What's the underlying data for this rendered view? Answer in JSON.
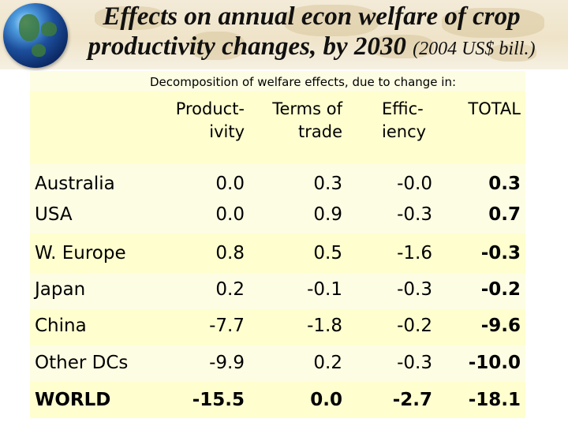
{
  "title": {
    "line1": "Effects on annual econ welfare of crop",
    "line2": "productivity changes, by 2030",
    "unit": "(2004 US$ bill.)"
  },
  "table": {
    "decomposition_label": "Decomposition of welfare effects, due to change in:",
    "columns": [
      {
        "line1": "Product-",
        "line2": "ivity"
      },
      {
        "line1": "Terms of",
        "line2": "trade"
      },
      {
        "line1": "Effic-",
        "line2": "iency"
      },
      {
        "line1": "TOTAL",
        "line2": ""
      }
    ],
    "rows": [
      {
        "region": "Australia",
        "productivity": "0.0",
        "terms_of_trade": "0.3",
        "efficiency": "-0.0",
        "total": "0.3"
      },
      {
        "region": "USA",
        "productivity": "0.0",
        "terms_of_trade": "0.9",
        "efficiency": "-0.3",
        "total": "0.7"
      },
      {
        "region": "W. Europe",
        "productivity": "0.8",
        "terms_of_trade": "0.5",
        "efficiency": "-1.6",
        "total": "-0.3"
      },
      {
        "region": "Japan",
        "productivity": "0.2",
        "terms_of_trade": "-0.1",
        "efficiency": "-0.3",
        "total": "-0.2"
      },
      {
        "region": "China",
        "productivity": "-7.7",
        "terms_of_trade": "-1.8",
        "efficiency": "-0.2",
        "total": "-9.6"
      },
      {
        "region": "Other DCs",
        "productivity": "-9.9",
        "terms_of_trade": "0.2",
        "efficiency": "-0.3",
        "total": "-10.0"
      },
      {
        "region": "WORLD",
        "productivity": "-15.5",
        "terms_of_trade": "0.0",
        "efficiency": "-2.7",
        "total": "-18.1"
      }
    ]
  }
}
